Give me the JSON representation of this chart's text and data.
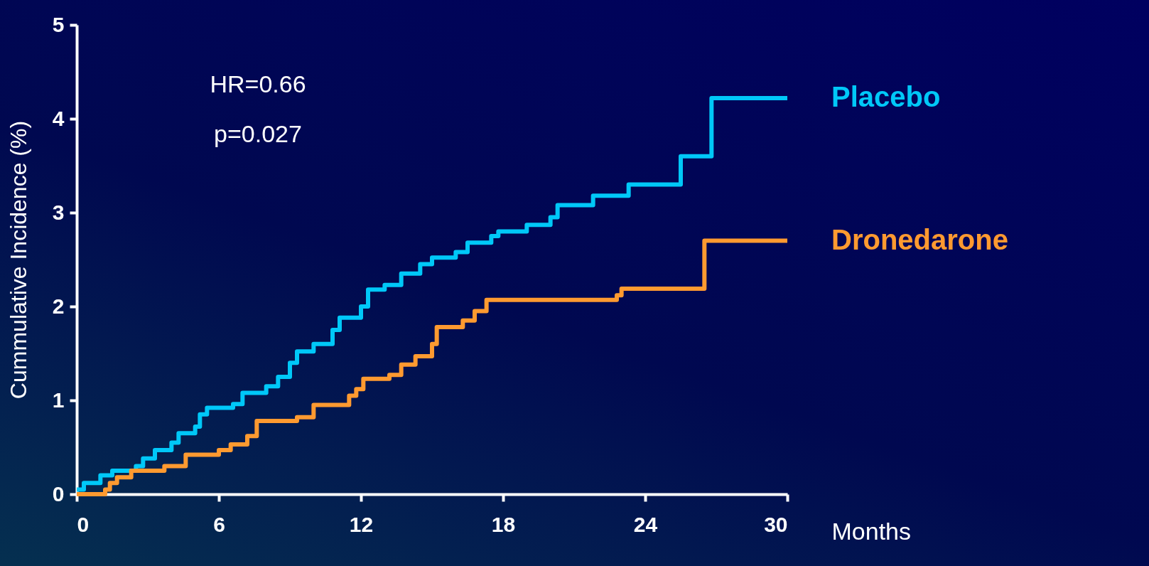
{
  "chart_data": {
    "type": "step",
    "ylabel": "Cummulative Incidence (%)",
    "xlabel": "Months",
    "annotations": [
      "HR=0.66",
      "p=0.027"
    ],
    "xlim": [
      0,
      30
    ],
    "xticks": [
      0,
      6,
      12,
      18,
      24,
      30
    ],
    "ylim": [
      0,
      5
    ],
    "yticks": [
      0,
      1,
      2,
      3,
      4,
      5
    ],
    "grid": false,
    "legend": "right",
    "line_style": "solid",
    "marker": "none",
    "series": [
      {
        "name": "Placebo",
        "color": "#00c8f8",
        "x": [
          0,
          0.3,
          1,
          1.5,
          2.5,
          2.8,
          3.3,
          4,
          4.3,
          5,
          5.2,
          5.5,
          6.6,
          7,
          8,
          8.5,
          9,
          9.3,
          10,
          10.8,
          11.1,
          12,
          12.3,
          13,
          13.7,
          14.5,
          15,
          16,
          16.5,
          17.5,
          17.8,
          19,
          20,
          20.3,
          21.8,
          23.3,
          25.5,
          26.8,
          30
        ],
        "values": [
          0.05,
          0.12,
          0.2,
          0.25,
          0.3,
          0.38,
          0.47,
          0.55,
          0.65,
          0.72,
          0.85,
          0.92,
          0.96,
          1.08,
          1.15,
          1.25,
          1.4,
          1.52,
          1.6,
          1.75,
          1.88,
          2.0,
          2.18,
          2.23,
          2.35,
          2.45,
          2.52,
          2.58,
          2.68,
          2.75,
          2.8,
          2.87,
          2.95,
          3.08,
          3.18,
          3.3,
          3.6,
          4.22,
          4.22
        ]
      },
      {
        "name": "Dronedarone",
        "color": "#ff9a30",
        "x": [
          0,
          1.2,
          1.4,
          1.7,
          2.3,
          3.7,
          4.6,
          6,
          6.5,
          7.2,
          7.6,
          9.3,
          10,
          11.5,
          11.8,
          12.1,
          13.2,
          13.7,
          14.3,
          15,
          15.2,
          16.3,
          16.8,
          17.3,
          22.8,
          23,
          26.5,
          30
        ],
        "values": [
          0,
          0.05,
          0.12,
          0.18,
          0.25,
          0.3,
          0.42,
          0.47,
          0.53,
          0.62,
          0.78,
          0.82,
          0.95,
          1.05,
          1.12,
          1.23,
          1.27,
          1.38,
          1.47,
          1.6,
          1.78,
          1.85,
          1.95,
          2.07,
          2.12,
          2.19,
          2.7,
          2.7
        ]
      }
    ]
  }
}
